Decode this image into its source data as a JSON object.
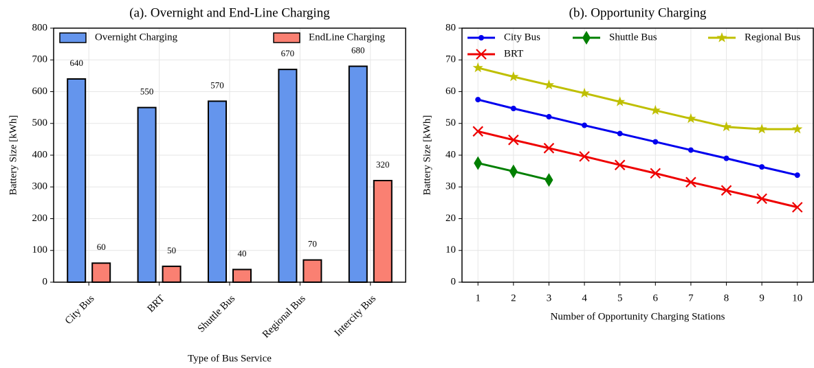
{
  "chart_data": [
    {
      "type": "bar",
      "title": "(a). Overnight and End-Line Charging",
      "xlabel": "Type of Bus Service",
      "ylabel": "Battery Size [kWh]",
      "categories": [
        "City Bus",
        "BRT",
        "Shuttle Bus",
        "Regional Bus",
        "Intercity Bus"
      ],
      "series": [
        {
          "name": "Overnight Charging",
          "color": "#6495ed",
          "values": [
            640,
            550,
            570,
            670,
            680
          ]
        },
        {
          "name": "EndLine Charging",
          "color": "#fa8072",
          "values": [
            60,
            50,
            40,
            70,
            320
          ]
        }
      ],
      "ylim": [
        0,
        800
      ],
      "yticks": [
        0,
        100,
        200,
        300,
        400,
        500,
        600,
        700,
        800
      ],
      "grid": true,
      "legend": "top"
    },
    {
      "type": "line",
      "title": "(b). Opportunity Charging",
      "xlabel": "Number of Opportunity Charging Stations",
      "ylabel": "Battery Size [kWh]",
      "x": [
        1,
        2,
        3,
        4,
        5,
        6,
        7,
        8,
        9,
        10
      ],
      "series": [
        {
          "name": "City Bus",
          "color": "#0000ee",
          "marker": "circle",
          "values": [
            57.5,
            54.7,
            52.1,
            49.4,
            46.8,
            44.2,
            41.6,
            39.0,
            36.3,
            33.7
          ]
        },
        {
          "name": "BRT",
          "color": "#ee0000",
          "marker": "x",
          "values": [
            47.5,
            44.8,
            42.2,
            39.6,
            36.9,
            34.3,
            31.5,
            28.9,
            26.3,
            23.6
          ]
        },
        {
          "name": "Shuttle Bus",
          "color": "#007f00",
          "marker": "diamond",
          "values": [
            37.5,
            34.9,
            32.2,
            null,
            null,
            null,
            null,
            null,
            null,
            null
          ]
        },
        {
          "name": "Regional Bus",
          "color": "#bfbf00",
          "marker": "star",
          "values": [
            67.5,
            64.7,
            62.1,
            59.5,
            56.8,
            54.1,
            51.5,
            48.9,
            48.2,
            48.2
          ]
        }
      ],
      "xlim": [
        0.55,
        10.45
      ],
      "xticks": [
        1,
        2,
        3,
        4,
        5,
        6,
        7,
        8,
        9,
        10
      ],
      "ylim": [
        0,
        80
      ],
      "yticks": [
        0,
        10,
        20,
        30,
        40,
        50,
        60,
        70,
        80
      ],
      "grid": true,
      "legend": "top"
    }
  ]
}
